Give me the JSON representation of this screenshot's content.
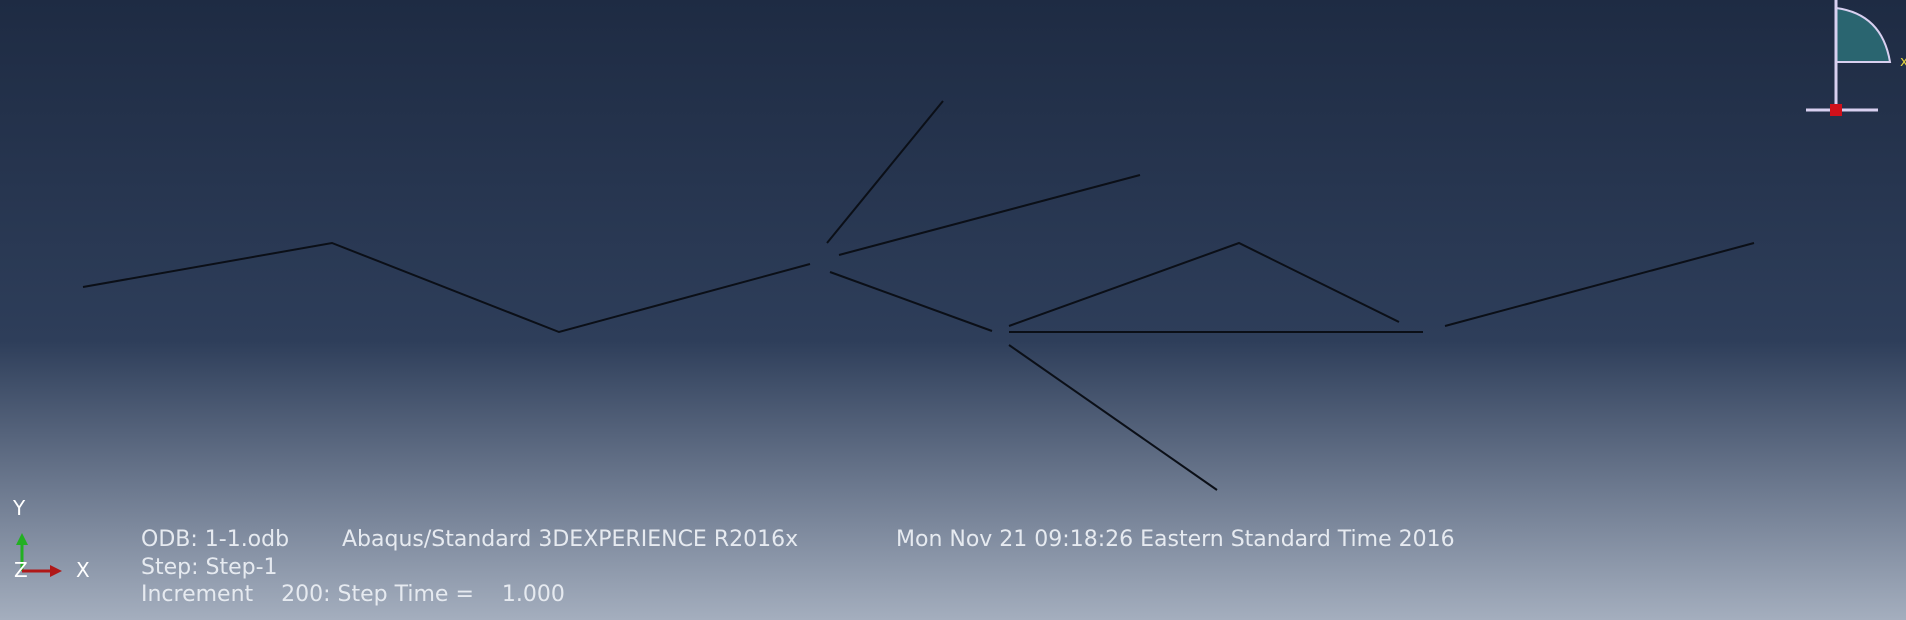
{
  "viewport": {
    "triad": {
      "y": "Y",
      "x": "X",
      "z": "Z"
    },
    "info": {
      "odb": "ODB: 1-1.odb",
      "product": "Abaqus/Standard 3DEXPERIENCE R2016x",
      "date": "Mon Nov 21 09:18:26 Eastern Standard Time 2016",
      "step": "Step: Step-1",
      "increment": "Increment    200: Step Time =    1.000"
    }
  }
}
